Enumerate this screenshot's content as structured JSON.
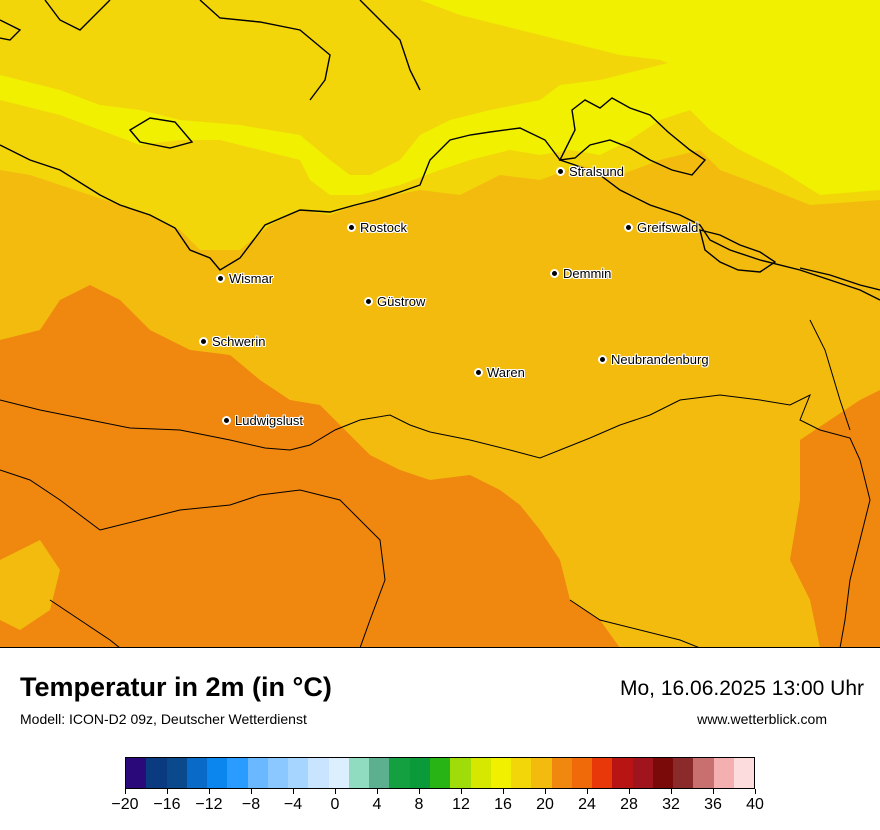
{
  "title": "Temperatur in 2m (in °C)",
  "subtitle": "Modell: ICON-D2 09z, Deutscher Wetterdienst",
  "datetime": "Mo, 16.06.2025 13:00 Uhr",
  "website": "www.wetterblick.com",
  "map": {
    "field_colors": {
      "t16": "#f0f000",
      "t18": "#f2d60a",
      "t20": "#f2bb0e",
      "t22": "#f0870f"
    },
    "cities": [
      {
        "name": "Stralsund"
      },
      {
        "name": "Rostock"
      },
      {
        "name": "Greifswald"
      },
      {
        "name": "Wismar"
      },
      {
        "name": "Demmin"
      },
      {
        "name": "Güstrow"
      },
      {
        "name": "Schwerin"
      },
      {
        "name": "Neubrandenburg"
      },
      {
        "name": "Waren"
      },
      {
        "name": "Ludwigslust"
      }
    ]
  },
  "legend": {
    "colors": [
      "#2a0a7a",
      "#0a3a80",
      "#0a4a8c",
      "#0a6ac8",
      "#0a86ee",
      "#2a9cff",
      "#6ab8ff",
      "#8ac8ff",
      "#a6d6ff",
      "#c8e4ff",
      "#dcefff",
      "#8fdcc0",
      "#5cb090",
      "#14a040",
      "#0a9a3a",
      "#28b414",
      "#a0dc0a",
      "#d6e800",
      "#f0f000",
      "#f2d60a",
      "#f2bb0e",
      "#f0870f",
      "#f06a0a",
      "#e8380a",
      "#b81414",
      "#a0141e",
      "#7a0a0a",
      "#8a2a2a",
      "#c87070",
      "#f4b0b0",
      "#fcdcdc"
    ],
    "ticks": [
      "−20",
      "−16",
      "−12",
      "−8",
      "−4",
      "0",
      "4",
      "8",
      "12",
      "16",
      "20",
      "24",
      "28",
      "32",
      "36",
      "40"
    ]
  }
}
